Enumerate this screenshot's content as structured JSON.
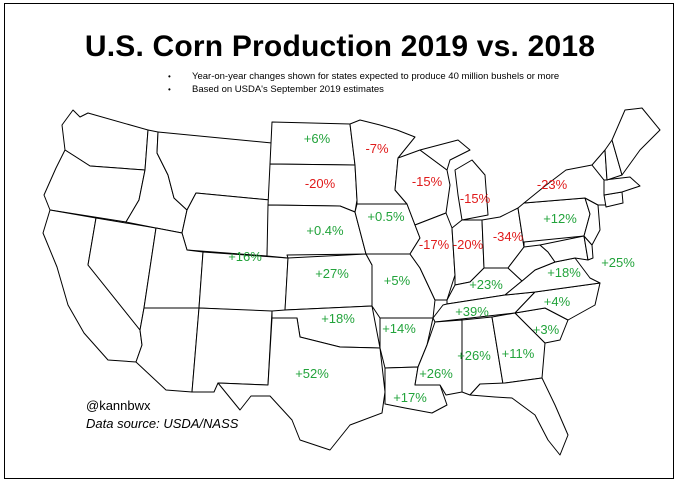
{
  "title": "U.S. Corn Production 2019 vs. 2018",
  "notes": [
    "Year-on-year changes shown for states expected to produce 40 million bushels or more",
    "Based on USDA's September 2019 estimates"
  ],
  "credit": {
    "handle": "@kannbwx",
    "source": "Data source: USDA/NASS"
  },
  "colors": {
    "increase": "#22a33b",
    "decrease": "#e01b1b",
    "border": "#000000"
  },
  "chart_data": {
    "type": "choropleth-labels",
    "unit": "%",
    "states": [
      {
        "state": "North Dakota",
        "change": "+6%",
        "value": 6
      },
      {
        "state": "Minnesota",
        "change": "-7%",
        "value": -7
      },
      {
        "state": "South Dakota",
        "change": "-20%",
        "value": -20
      },
      {
        "state": "Wisconsin",
        "change": "-15%",
        "value": -15
      },
      {
        "state": "Michigan",
        "change": "-15%",
        "value": -15
      },
      {
        "state": "New York",
        "change": "-23%",
        "value": -23
      },
      {
        "state": "Iowa",
        "change": "+0.5%",
        "value": 0.5
      },
      {
        "state": "Nebraska",
        "change": "+0.4%",
        "value": 0.4
      },
      {
        "state": "Pennsylvania",
        "change": "+12%",
        "value": 12
      },
      {
        "state": "Illinois",
        "change": "-17%",
        "value": -17
      },
      {
        "state": "Indiana",
        "change": "-20%",
        "value": -20
      },
      {
        "state": "Ohio",
        "change": "-34%",
        "value": -34
      },
      {
        "state": "Colorado",
        "change": "+16%",
        "value": 16
      },
      {
        "state": "Kansas",
        "change": "+27%",
        "value": 27
      },
      {
        "state": "Missouri",
        "change": "+5%",
        "value": 5
      },
      {
        "state": "Maryland",
        "change": "+18%",
        "value": 18
      },
      {
        "state": "Delaware",
        "change": "+25%",
        "value": 25
      },
      {
        "state": "Kentucky",
        "change": "+23%",
        "value": 23
      },
      {
        "state": "Virginia",
        "change": "+4%",
        "value": 4
      },
      {
        "state": "Oklahoma",
        "change": "+18%",
        "value": 18
      },
      {
        "state": "Tennessee",
        "change": "+39%",
        "value": 39
      },
      {
        "state": "Arkansas",
        "change": "+14%",
        "value": 14
      },
      {
        "state": "North Carolina",
        "change": "+3%",
        "value": 3
      },
      {
        "state": "Mississippi",
        "change": "+26%",
        "value": 26
      },
      {
        "state": "Alabama",
        "change": "+26%",
        "value": 26
      },
      {
        "state": "Georgia",
        "change": "+11%",
        "value": 11
      },
      {
        "state": "Texas",
        "change": "+52%",
        "value": 52
      },
      {
        "state": "Louisiana",
        "change": "+17%",
        "value": 17
      }
    ]
  }
}
